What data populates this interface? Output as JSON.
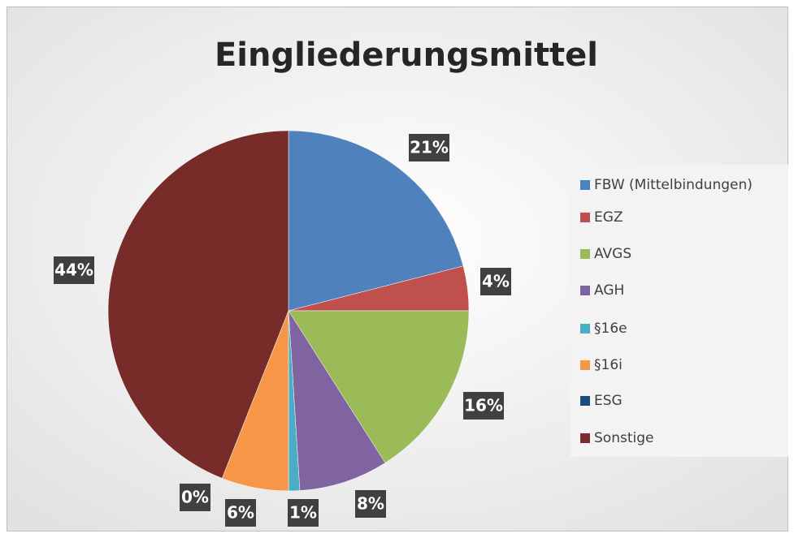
{
  "chart_data": {
    "type": "pie",
    "title": "Eingliederungsmittel",
    "categories": [
      "FBW (Mittelbindungen)",
      "EGZ",
      "AVGS",
      "AGH",
      "§16e",
      "§16i",
      "ESG",
      "Sonstige"
    ],
    "values": [
      21,
      4,
      16,
      8,
      1,
      6,
      0,
      44
    ],
    "value_labels": [
      "21%",
      "4%",
      "16%",
      "8%",
      "1%",
      "6%",
      "0%",
      "44%"
    ],
    "colors": [
      "#4f81bd",
      "#c0504d",
      "#9bbb59",
      "#8064a2",
      "#4bacc6",
      "#f79646",
      "#1f497d",
      "#772c2a"
    ],
    "legend": "right"
  }
}
